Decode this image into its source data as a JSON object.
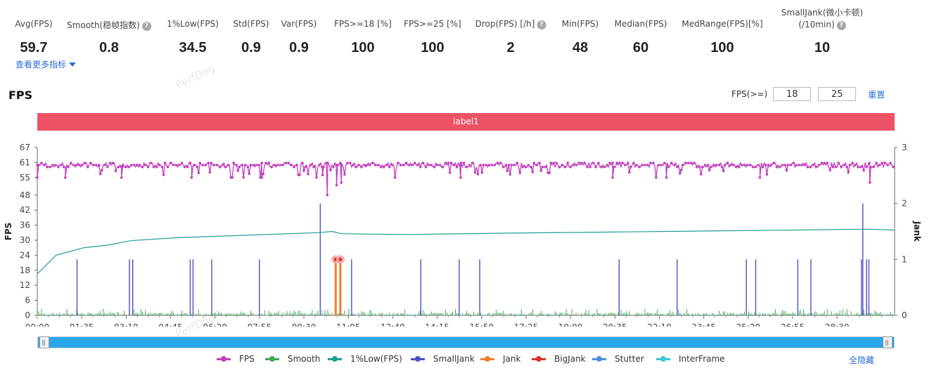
{
  "metrics": [
    {
      "label": "Avg(FPS)",
      "value": "59.7",
      "help": false
    },
    {
      "label": "Smooth(稳帧指数)",
      "value": "0.8",
      "help": true
    },
    {
      "label": "1%Low(FPS)",
      "value": "34.5",
      "help": false
    },
    {
      "label": "Std(FPS)",
      "value": "0.9",
      "help": false
    },
    {
      "label": "Var(FPS)",
      "value": "0.9",
      "help": false
    },
    {
      "label": "FPS>=18 [%]",
      "value": "100",
      "help": false
    },
    {
      "label": "FPS>=25 [%]",
      "value": "100",
      "help": false
    },
    {
      "label": "Drop(FPS) [/h]",
      "value": "2",
      "help": true
    },
    {
      "label": "Min(FPS)",
      "value": "48",
      "help": false
    },
    {
      "label": "Median(FPS)",
      "value": "60",
      "help": false
    },
    {
      "label": "MedRange(FPS)[%]",
      "value": "100",
      "help": false
    },
    {
      "label": "SmallJank(微小卡顿)",
      "label2": "(/10min)",
      "value": "10",
      "help": true
    }
  ],
  "more_metrics": "查看更多指标",
  "watermark": "PerfDog",
  "section_title": "FPS",
  "threshold": {
    "label": "FPS(>=)",
    "value1": "18",
    "value2": "25",
    "reset": "重置"
  },
  "label_bar": "label1",
  "legend": {
    "items": [
      {
        "name": "FPS",
        "color": "#c23fbd"
      },
      {
        "name": "Smooth",
        "color": "#3faa5a"
      },
      {
        "name": "1%Low(FPS)",
        "color": "#1f9e93"
      },
      {
        "name": "SmallJank",
        "color": "#4d4fc4"
      },
      {
        "name": "Jank",
        "color": "#f07e2b"
      },
      {
        "name": "BigJank",
        "color": "#d8322d"
      },
      {
        "name": "Stutter",
        "color": "#4a8fdc"
      },
      {
        "name": "InterFrame",
        "color": "#38c7d6"
      }
    ],
    "hide_all": "全隐藏"
  },
  "chart_data": {
    "type": "line",
    "xlabel": "",
    "ylabel": "FPS",
    "y2label": "Jank",
    "x_ticks": [
      "00:00",
      "01:35",
      "03:10",
      "04:45",
      "06:20",
      "07:55",
      "09:30",
      "11:05",
      "12:40",
      "14:15",
      "15:50",
      "17:25",
      "19:00",
      "20:35",
      "22:10",
      "23:45",
      "25:20",
      "26:55",
      "28:30"
    ],
    "x_range_seconds": [
      0,
      1833
    ],
    "y_ticks": [
      0,
      6,
      12,
      18,
      24,
      30,
      36,
      42,
      48,
      55,
      61,
      67
    ],
    "y2_ticks": [
      0,
      1,
      2,
      3
    ],
    "ylim": [
      0,
      67
    ],
    "y2lim": [
      0,
      3
    ],
    "grid": false,
    "legend_position": "bottom",
    "series": [
      {
        "name": "FPS",
        "base": 60,
        "dips_seconds": [
          0,
          60,
          180,
          330,
          480,
          610,
          620,
          640,
          650,
          905,
          1230,
          1345,
          1545,
          1780
        ],
        "dip_values": [
          55,
          55,
          55,
          55,
          55,
          56,
          48,
          52,
          53,
          55,
          55,
          55,
          55,
          53
        ]
      },
      {
        "name": "Smooth",
        "typical": 0.05,
        "max": 0.12
      },
      {
        "name": "1%Low(FPS)",
        "x_seconds": [
          0,
          40,
          100,
          150,
          200,
          300,
          450,
          600,
          630,
          650,
          700,
          800,
          1000,
          1200,
          1400,
          1600,
          1780,
          1833
        ],
        "values": [
          16.5,
          24,
          27,
          28,
          29.8,
          31,
          32,
          33,
          33.5,
          32.6,
          32.4,
          32.3,
          32.8,
          33.2,
          33.6,
          34,
          34.4,
          34
        ]
      },
      {
        "name": "SmallJank",
        "x_seconds": [
          85,
          197,
          204,
          327,
          333,
          373,
          475,
          605,
          672,
          820,
          902,
          946,
          1244,
          1368,
          1516,
          1536,
          1626,
          1654,
          1762,
          1765,
          1773,
          1778
        ],
        "values": [
          1,
          1,
          1,
          1,
          1,
          1,
          1,
          2,
          1,
          1,
          1,
          1,
          1,
          1,
          1,
          1,
          1,
          1,
          1,
          2,
          1,
          1
        ]
      },
      {
        "name": "BigJank",
        "x_seconds": [
          638,
          648
        ],
        "values": [
          1,
          1
        ]
      }
    ]
  }
}
